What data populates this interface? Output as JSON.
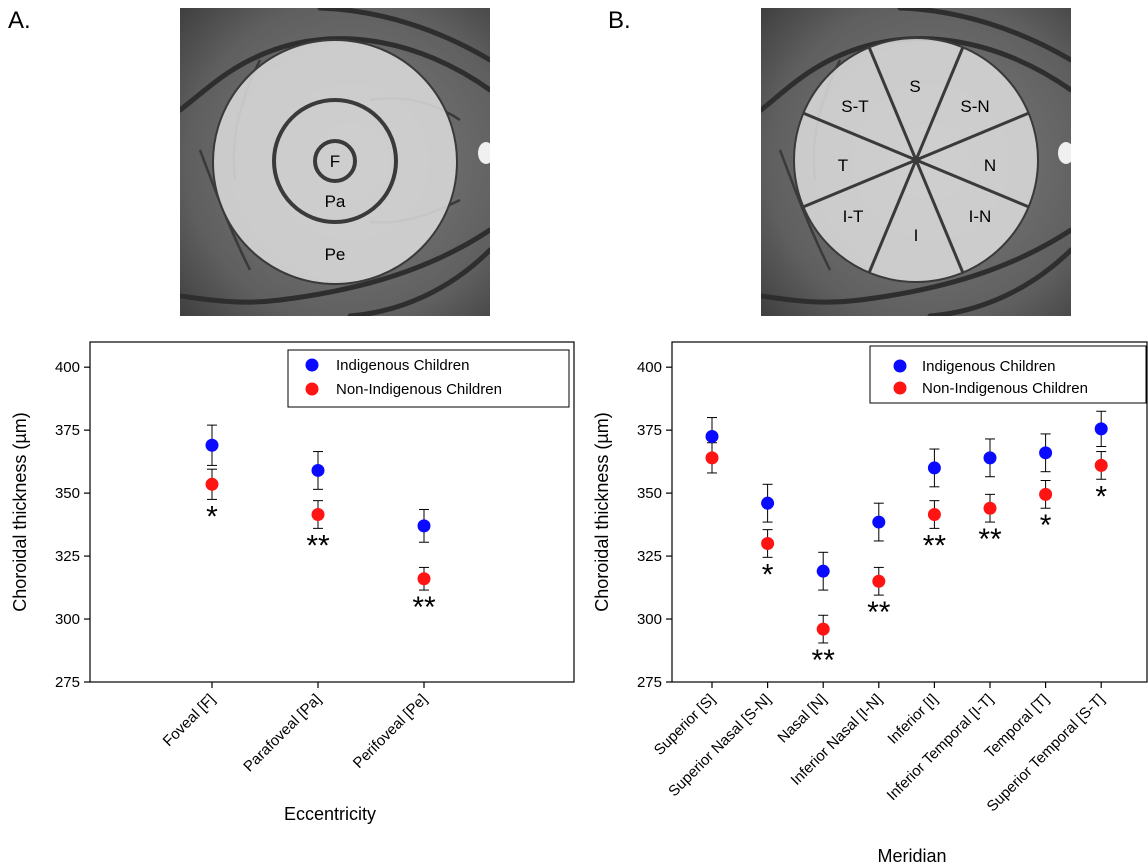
{
  "panels": [
    {
      "letter": "A.",
      "region_labels": [
        "F",
        "Pa",
        "Pe"
      ]
    },
    {
      "letter": "B.",
      "region_labels": [
        "S",
        "S-N",
        "N",
        "I-N",
        "I",
        "I-T",
        "T",
        "S-T"
      ]
    }
  ],
  "colors": {
    "indigenous": "#0a0aff",
    "non_indigenous": "#ff1414"
  },
  "chart_data": [
    {
      "type": "scatter",
      "title": "",
      "xlabel": "Eccentricity",
      "ylabel": "Choroidal thickness (µm)",
      "ylim": [
        275,
        410
      ],
      "yticks": [
        275,
        300,
        325,
        350,
        375,
        400
      ],
      "categories": [
        "Foveal [F]",
        "Parafoveal [Pa]",
        "Perifoveal [Pe]"
      ],
      "legend_position": "top-right",
      "grid": false,
      "series": [
        {
          "name": "Indigenous Children",
          "values": [
            369,
            359,
            337
          ],
          "errors": [
            8,
            7.5,
            6.5
          ]
        },
        {
          "name": "Non-Indigenous Children",
          "values": [
            353.5,
            341.5,
            316
          ],
          "errors": [
            6,
            5.5,
            4.5
          ]
        }
      ],
      "significance": [
        "*",
        "**",
        "**"
      ]
    },
    {
      "type": "scatter",
      "title": "",
      "xlabel": "Meridian",
      "ylabel": "Choroidal thickness (µm)",
      "ylim": [
        275,
        410
      ],
      "yticks": [
        275,
        300,
        325,
        350,
        375,
        400
      ],
      "categories": [
        "Superior [S]",
        "Superior Nasal [S-N]",
        "Nasal [N]",
        "Inferior Nasal [I-N]",
        "Inferior [I]",
        "Inferior Temporal [I-T]",
        "Temporal [T]",
        "Superior Temporal [S-T]"
      ],
      "legend_position": "top-right",
      "grid": false,
      "series": [
        {
          "name": "Indigenous Children",
          "values": [
            372.5,
            346,
            319,
            338.5,
            360,
            364,
            366,
            375.5
          ],
          "errors": [
            7.5,
            7.5,
            7.5,
            7.5,
            7.5,
            7.5,
            7.5,
            7
          ]
        },
        {
          "name": "Non-Indigenous Children",
          "values": [
            364,
            330,
            296,
            315,
            341.5,
            344,
            349.5,
            361
          ],
          "errors": [
            6,
            5.5,
            5.5,
            5.5,
            5.5,
            5.5,
            5.5,
            5.5
          ]
        }
      ],
      "significance": [
        "",
        "*",
        "**",
        "**",
        "**",
        "**",
        "*",
        "*"
      ]
    }
  ]
}
